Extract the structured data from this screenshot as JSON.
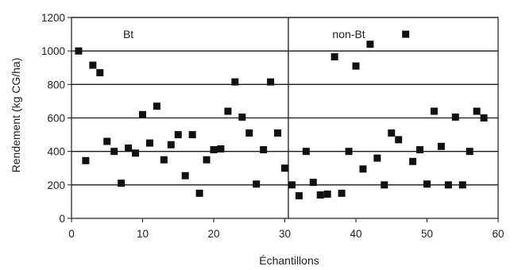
{
  "chart_data": {
    "type": "scatter",
    "title": "",
    "xlabel": "Échantillons",
    "ylabel": "Rendement (kg CG/ha)",
    "xlim": [
      0,
      60
    ],
    "ylim": [
      0,
      1200
    ],
    "xticks": [
      0,
      10,
      20,
      30,
      40,
      50,
      60
    ],
    "yticks": [
      0,
      200,
      400,
      600,
      800,
      1000,
      1200
    ],
    "grid": "horizontal",
    "divider_x": 30.5,
    "annotations": [
      {
        "text": "Bt",
        "x": 8,
        "y": 1100
      },
      {
        "text": "non-Bt",
        "x": 39,
        "y": 1100
      }
    ],
    "marker_color": "#111111",
    "series": [
      {
        "x": [
          1,
          2,
          3,
          4,
          5,
          6,
          7,
          8,
          9,
          10,
          11,
          12,
          13,
          14,
          15,
          16,
          17,
          18,
          19,
          20,
          21,
          22,
          23,
          24,
          25,
          26,
          27,
          28,
          29,
          30,
          31,
          32,
          33,
          34,
          35,
          36,
          37,
          38,
          39,
          40,
          41,
          42,
          43,
          44,
          45,
          46,
          47,
          48,
          49,
          50,
          51,
          52,
          53,
          54,
          55,
          56,
          57,
          58
        ],
        "y": [
          1000,
          345,
          915,
          870,
          460,
          400,
          210,
          420,
          390,
          620,
          450,
          670,
          350,
          440,
          500,
          255,
          500,
          150,
          350,
          410,
          415,
          640,
          815,
          605,
          510,
          205,
          410,
          815,
          510,
          300,
          200,
          135,
          400,
          215,
          140,
          145,
          965,
          150,
          400,
          910,
          295,
          1040,
          360,
          200,
          510,
          470,
          1100,
          340,
          410,
          205,
          640,
          430,
          200,
          605,
          200,
          400,
          640,
          600
        ]
      }
    ]
  }
}
